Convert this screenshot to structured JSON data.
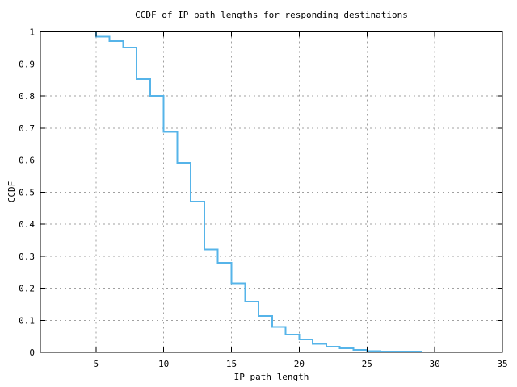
{
  "chart_data": {
    "type": "line",
    "line_style": "step",
    "title": "CCDF of IP path lengths for responding destinations",
    "xlabel": "IP path length",
    "ylabel": "CCDF",
    "xlim": [
      0.9,
      35
    ],
    "ylim": [
      0,
      1
    ],
    "x_ticks": [
      5,
      10,
      15,
      20,
      25,
      30,
      35
    ],
    "y_ticks": [
      0,
      0.1,
      0.2,
      0.3,
      0.4,
      0.5,
      0.6,
      0.7,
      0.8,
      0.9,
      1
    ],
    "x_tick_labels": [
      "5",
      "10",
      "15",
      "20",
      "25",
      "30",
      "35"
    ],
    "y_tick_labels": [
      "0",
      "0.1",
      "0.2",
      "0.3",
      "0.4",
      "0.5",
      "0.6",
      "0.7",
      "0.8",
      "0.9",
      "1"
    ],
    "grid": true,
    "legend_position": "none",
    "colors": {
      "line": "#56b4e9",
      "grid": "#a0a0a0",
      "axis": "#000000",
      "background": "#ffffff"
    },
    "series": [
      {
        "name": "ccdf-of-ip-path-length",
        "color": "#56b4e9",
        "start": {
          "x": 5,
          "y": 1.0
        },
        "steps": [
          {
            "x": 5,
            "y": 0.985
          },
          {
            "x": 6,
            "y": 0.971
          },
          {
            "x": 7,
            "y": 0.951
          },
          {
            "x": 8,
            "y": 0.853
          },
          {
            "x": 9,
            "y": 0.8
          },
          {
            "x": 10,
            "y": 0.688
          },
          {
            "x": 11,
            "y": 0.591
          },
          {
            "x": 12,
            "y": 0.47
          },
          {
            "x": 13,
            "y": 0.321
          },
          {
            "x": 14,
            "y": 0.279
          },
          {
            "x": 15,
            "y": 0.215
          },
          {
            "x": 16,
            "y": 0.158
          },
          {
            "x": 17,
            "y": 0.113
          },
          {
            "x": 18,
            "y": 0.079
          },
          {
            "x": 19,
            "y": 0.055
          },
          {
            "x": 20,
            "y": 0.04
          },
          {
            "x": 21,
            "y": 0.026
          },
          {
            "x": 22,
            "y": 0.017
          },
          {
            "x": 23,
            "y": 0.013
          },
          {
            "x": 24,
            "y": 0.008
          },
          {
            "x": 25,
            "y": 0.004
          },
          {
            "x": 26,
            "y": 0.002
          },
          {
            "x": 29,
            "y": 0.0
          }
        ]
      }
    ]
  }
}
